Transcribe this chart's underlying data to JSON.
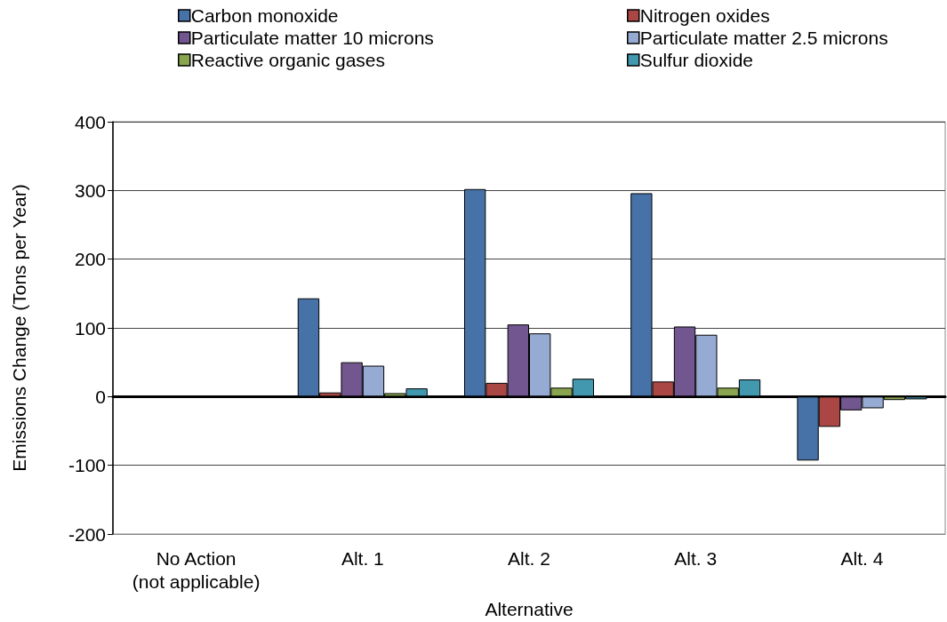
{
  "chart_data": {
    "type": "bar",
    "xlabel": "Alternative",
    "ylabel": "Emissions Change (Tons per Year)",
    "categories": [
      "No Action\n(not applicable)",
      "Alt. 1",
      "Alt. 2",
      "Alt. 3",
      "Alt. 4"
    ],
    "series": [
      {
        "name": "Carbon monoxide",
        "color": "#4672a8",
        "values": [
          null,
          143,
          302,
          296,
          -93
        ]
      },
      {
        "name": "Nitrogen oxides",
        "color": "#aa4644",
        "values": [
          null,
          6,
          20,
          22,
          -44
        ]
      },
      {
        "name": "Particulate matter 10 microns",
        "color": "#725690",
        "values": [
          null,
          50,
          105,
          102,
          -20
        ]
      },
      {
        "name": "Particulate matter 2.5 microns",
        "color": "#96abd3",
        "values": [
          null,
          45,
          92,
          90,
          -17
        ]
      },
      {
        "name": "Reactive organic gases",
        "color": "#89a54e",
        "values": [
          null,
          5,
          13,
          13,
          -5
        ]
      },
      {
        "name": "Sulfur dioxide",
        "color": "#4198af",
        "values": [
          null,
          12,
          26,
          25,
          -4
        ]
      }
    ],
    "ylim": [
      -200,
      400
    ],
    "yticks": [
      -200,
      -100,
      0,
      100,
      200,
      300,
      400
    ],
    "grid": "y",
    "legend": "top"
  }
}
